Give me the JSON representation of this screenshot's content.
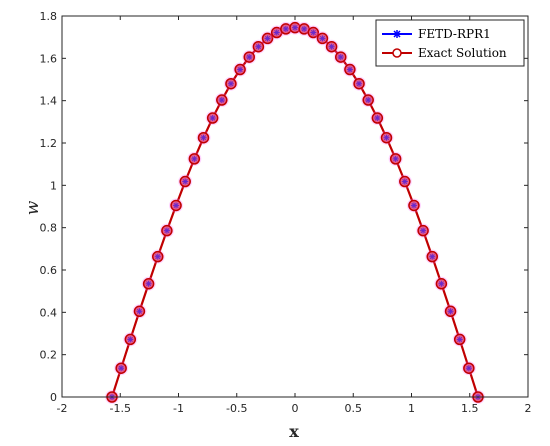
{
  "chart_data": {
    "type": "line",
    "title": "",
    "xlabel": "x",
    "ylabel": "w",
    "xlim": [
      -2,
      2
    ],
    "ylim": [
      0,
      1.8
    ],
    "xticks": [
      -2,
      -1.5,
      -1,
      -0.5,
      0,
      0.5,
      1,
      1.5,
      2
    ],
    "yticks": [
      0,
      0.2,
      0.4,
      0.6,
      0.8,
      1,
      1.2,
      1.4,
      1.6,
      1.8
    ],
    "grid": false,
    "legend_position": "top-right",
    "series": [
      {
        "name": "FETD-RPR1",
        "color": "#0000ff",
        "marker": "asterisk",
        "x": [
          -1.5708,
          -1.4923,
          -1.4137,
          -1.3352,
          -1.2566,
          -1.1781,
          -1.0996,
          -1.021,
          -0.9425,
          -0.8639,
          -0.7854,
          -0.7069,
          -0.6283,
          -0.5498,
          -0.4712,
          -0.3927,
          -0.3142,
          -0.2356,
          -0.1571,
          -0.0785,
          0,
          0.0785,
          0.1571,
          0.2356,
          0.3142,
          0.3927,
          0.4712,
          0.5498,
          0.6283,
          0.7069,
          0.7854,
          0.8639,
          0.9425,
          1.021,
          1.0996,
          1.1781,
          1.2566,
          1.3352,
          1.4137,
          1.4923,
          1.5708
        ],
        "y": [
          0,
          0.136,
          0.272,
          0.405,
          0.535,
          0.663,
          0.786,
          0.905,
          1.018,
          1.125,
          1.225,
          1.318,
          1.403,
          1.48,
          1.547,
          1.606,
          1.655,
          1.694,
          1.722,
          1.739,
          1.745,
          1.739,
          1.722,
          1.694,
          1.655,
          1.606,
          1.547,
          1.48,
          1.403,
          1.318,
          1.225,
          1.125,
          1.018,
          0.905,
          0.786,
          0.663,
          0.535,
          0.405,
          0.272,
          0.136,
          0
        ]
      },
      {
        "name": "Exact Solution",
        "color": "#c00000",
        "marker": "circle",
        "x": [
          -1.5708,
          -1.4923,
          -1.4137,
          -1.3352,
          -1.2566,
          -1.1781,
          -1.0996,
          -1.021,
          -0.9425,
          -0.8639,
          -0.7854,
          -0.7069,
          -0.6283,
          -0.5498,
          -0.4712,
          -0.3927,
          -0.3142,
          -0.2356,
          -0.1571,
          -0.0785,
          0,
          0.0785,
          0.1571,
          0.2356,
          0.3142,
          0.3927,
          0.4712,
          0.5498,
          0.6283,
          0.7069,
          0.7854,
          0.8639,
          0.9425,
          1.021,
          1.0996,
          1.1781,
          1.2566,
          1.3352,
          1.4137,
          1.4923,
          1.5708
        ],
        "y": [
          0,
          0.136,
          0.272,
          0.405,
          0.535,
          0.663,
          0.786,
          0.905,
          1.018,
          1.125,
          1.225,
          1.318,
          1.403,
          1.48,
          1.547,
          1.606,
          1.655,
          1.694,
          1.722,
          1.739,
          1.745,
          1.739,
          1.722,
          1.694,
          1.655,
          1.606,
          1.547,
          1.48,
          1.403,
          1.318,
          1.225,
          1.125,
          1.018,
          0.905,
          0.786,
          0.663,
          0.535,
          0.405,
          0.272,
          0.136,
          0
        ]
      }
    ]
  }
}
